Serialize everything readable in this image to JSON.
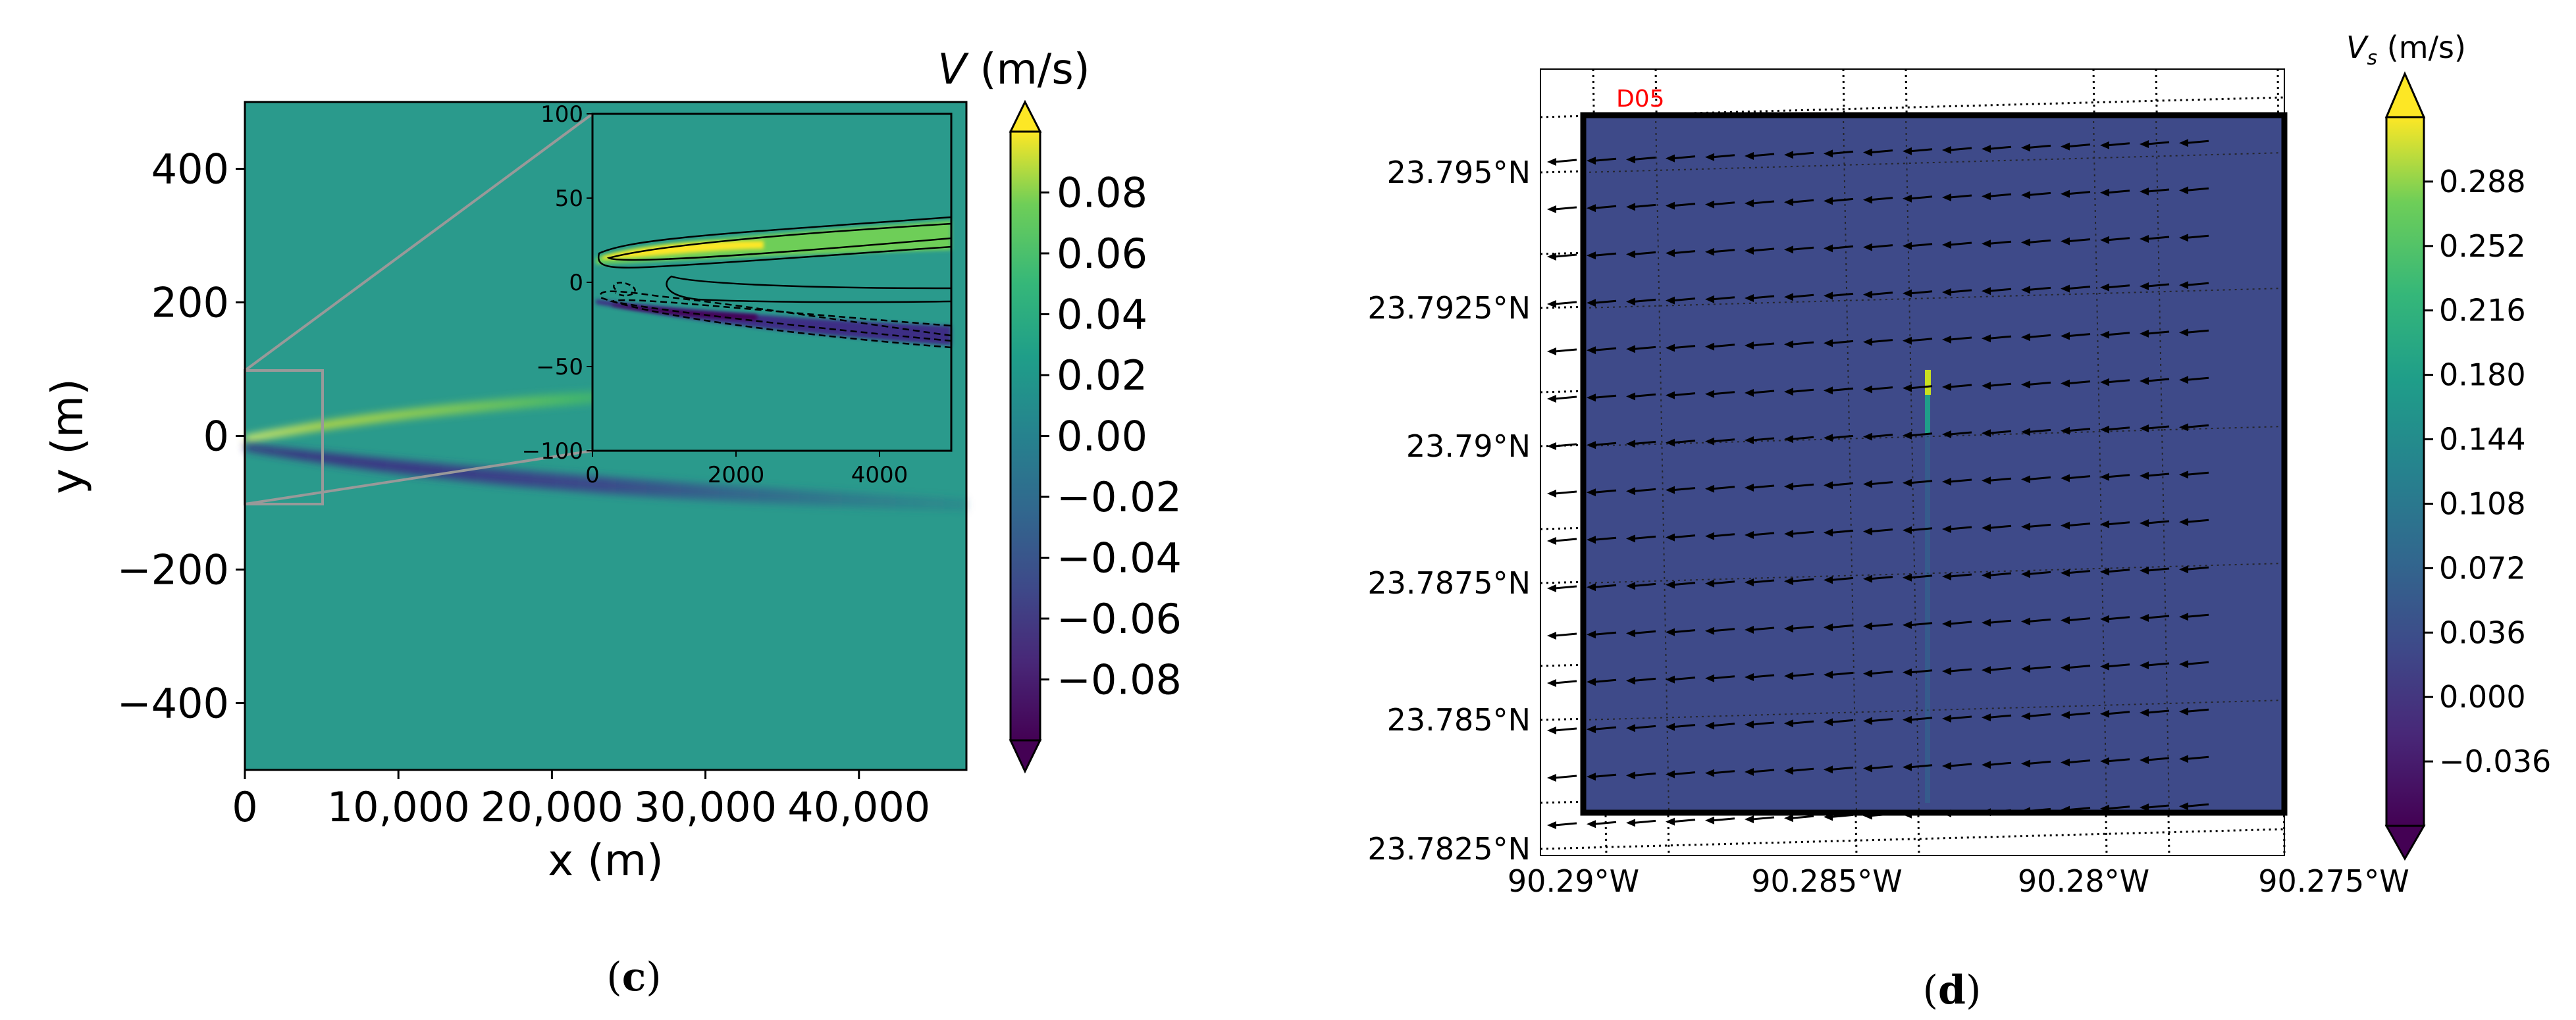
{
  "panels": {
    "c": {
      "caption_open": "(",
      "caption_letter": "c",
      "caption_close": ")"
    },
    "d": {
      "caption_open": "(",
      "caption_letter": "d",
      "caption_close": ")"
    }
  },
  "chart_data": [
    {
      "id": "panel-c-main",
      "type": "heatmap",
      "title": "",
      "xlabel": "x (m)",
      "ylabel": "y (m)",
      "xlim": [
        0,
        47000
      ],
      "ylim": [
        -500,
        500
      ],
      "xticks": [
        0,
        10000,
        20000,
        30000,
        40000
      ],
      "xtick_labels": [
        "0",
        "10,000",
        "20,000",
        "30,000",
        "40,000"
      ],
      "yticks": [
        400,
        200,
        0,
        -200,
        -400
      ],
      "ytick_labels": [
        "400",
        "200",
        "0",
        "−200",
        "−400"
      ],
      "zoom_box": {
        "x": [
          0,
          5000
        ],
        "y": [
          -100,
          100
        ]
      },
      "colorbar": {
        "label_var": "V",
        "label_unit": " (m/s)",
        "range": [
          -0.1,
          0.1
        ],
        "ticks": [
          0.08,
          0.06,
          0.04,
          0.02,
          0.0,
          -0.02,
          -0.04,
          -0.06,
          -0.08
        ],
        "tick_labels": [
          "0.08",
          "0.06",
          "0.04",
          "0.02",
          "0.00",
          "−0.02",
          "−0.04",
          "−0.06",
          "−0.08"
        ]
      },
      "inset": {
        "xlim": [
          0,
          5000
        ],
        "ylim": [
          -100,
          100
        ],
        "xticks": [
          0,
          2000,
          4000
        ],
        "xtick_labels": [
          "0",
          "2000",
          "4000"
        ],
        "yticks": [
          100,
          50,
          0,
          -50,
          -100
        ],
        "ytick_labels": [
          "100",
          "50",
          "0",
          "−50",
          "−100"
        ]
      }
    },
    {
      "id": "panel-d-map",
      "type": "heatmap",
      "title": "",
      "domain_label": "D05",
      "lon_range": [
        -90.29,
        -90.275
      ],
      "lat_range": [
        23.7825,
        23.7975
      ],
      "xtick_labels": [
        "90.29°W",
        "90.285°W",
        "90.28°W",
        "90.275°W"
      ],
      "ytick_labels": [
        "23.795°N",
        "23.7925°N",
        "23.79°N",
        "23.7875°N",
        "23.785°N",
        "23.7825°N"
      ],
      "vector_direction": "westward",
      "colorbar": {
        "label_var": "V",
        "label_sub": "s",
        "label_unit": " (m/s)",
        "range": [
          -0.072,
          0.324
        ],
        "ticks": [
          0.288,
          0.252,
          0.216,
          0.18,
          0.144,
          0.108,
          0.072,
          0.036,
          0.0,
          -0.036
        ],
        "tick_labels": [
          "0.288",
          "0.252",
          "0.216",
          "0.180",
          "0.144",
          "0.108",
          "0.072",
          "0.036",
          "0.000",
          "−0.036"
        ]
      }
    }
  ]
}
